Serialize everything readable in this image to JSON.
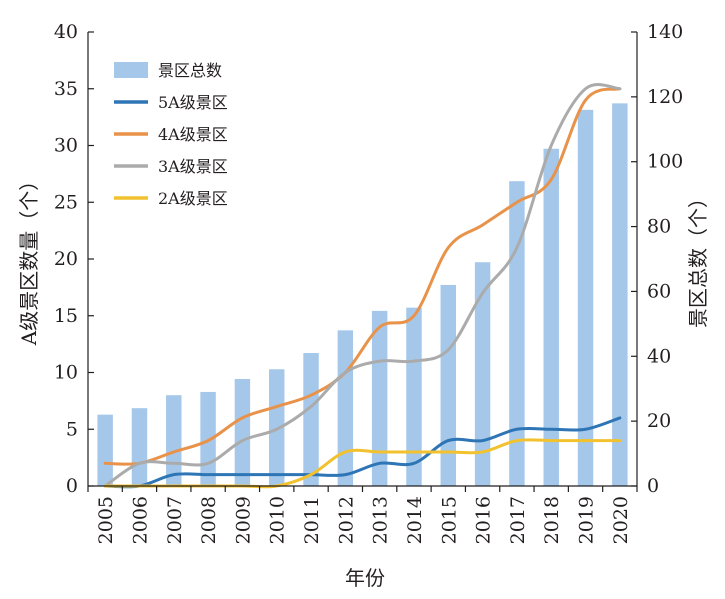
{
  "chart_data": {
    "type": "bar",
    "categories": [
      "2005",
      "2006",
      "2007",
      "2008",
      "2009",
      "2010",
      "2011",
      "2012",
      "2013",
      "2014",
      "2015",
      "2016",
      "2017",
      "2018",
      "2019",
      "2020"
    ],
    "xlabel": "年份",
    "ylabel_left": "A级景区数量（个）",
    "ylabel_right": "景区总数（个）",
    "ylim_left": [
      0,
      40
    ],
    "yticks_left": [
      0,
      5,
      10,
      15,
      20,
      25,
      30,
      35,
      40
    ],
    "ylim_right": [
      0,
      140
    ],
    "yticks_right": [
      0,
      20,
      40,
      60,
      80,
      100,
      120,
      140
    ],
    "grid": false,
    "legend_position": "top-left",
    "series": [
      {
        "name": "景区总数",
        "kind": "bar",
        "axis": "right",
        "color": "#a5c8ea",
        "values": [
          22,
          24,
          28,
          29,
          33,
          36,
          41,
          48,
          54,
          55,
          62,
          69,
          94,
          104,
          116,
          118
        ]
      },
      {
        "name": "5A级景区",
        "kind": "line",
        "axis": "left",
        "color": "#2e75b6",
        "values": [
          0,
          0,
          1,
          1,
          1,
          1,
          1,
          1,
          2,
          2,
          4,
          4,
          5,
          5,
          5,
          6
        ]
      },
      {
        "name": "4A级景区",
        "kind": "line",
        "axis": "left",
        "color": "#e8924a",
        "values": [
          2,
          2,
          3,
          4,
          6,
          7,
          8,
          10,
          14,
          15,
          21,
          23,
          25,
          27,
          34,
          35
        ]
      },
      {
        "name": "3A级景区",
        "kind": "line",
        "axis": "left",
        "color": "#ababab",
        "values": [
          0,
          2,
          2,
          2,
          4,
          5,
          7,
          10,
          11,
          11,
          12,
          17,
          21,
          30,
          35,
          35
        ]
      },
      {
        "name": "2A级景区",
        "kind": "line",
        "axis": "left",
        "color": "#f2c12e",
        "values": [
          0,
          0,
          0,
          0,
          0,
          0,
          1,
          3,
          3,
          3,
          3,
          3,
          4,
          4,
          4,
          4
        ]
      }
    ]
  }
}
